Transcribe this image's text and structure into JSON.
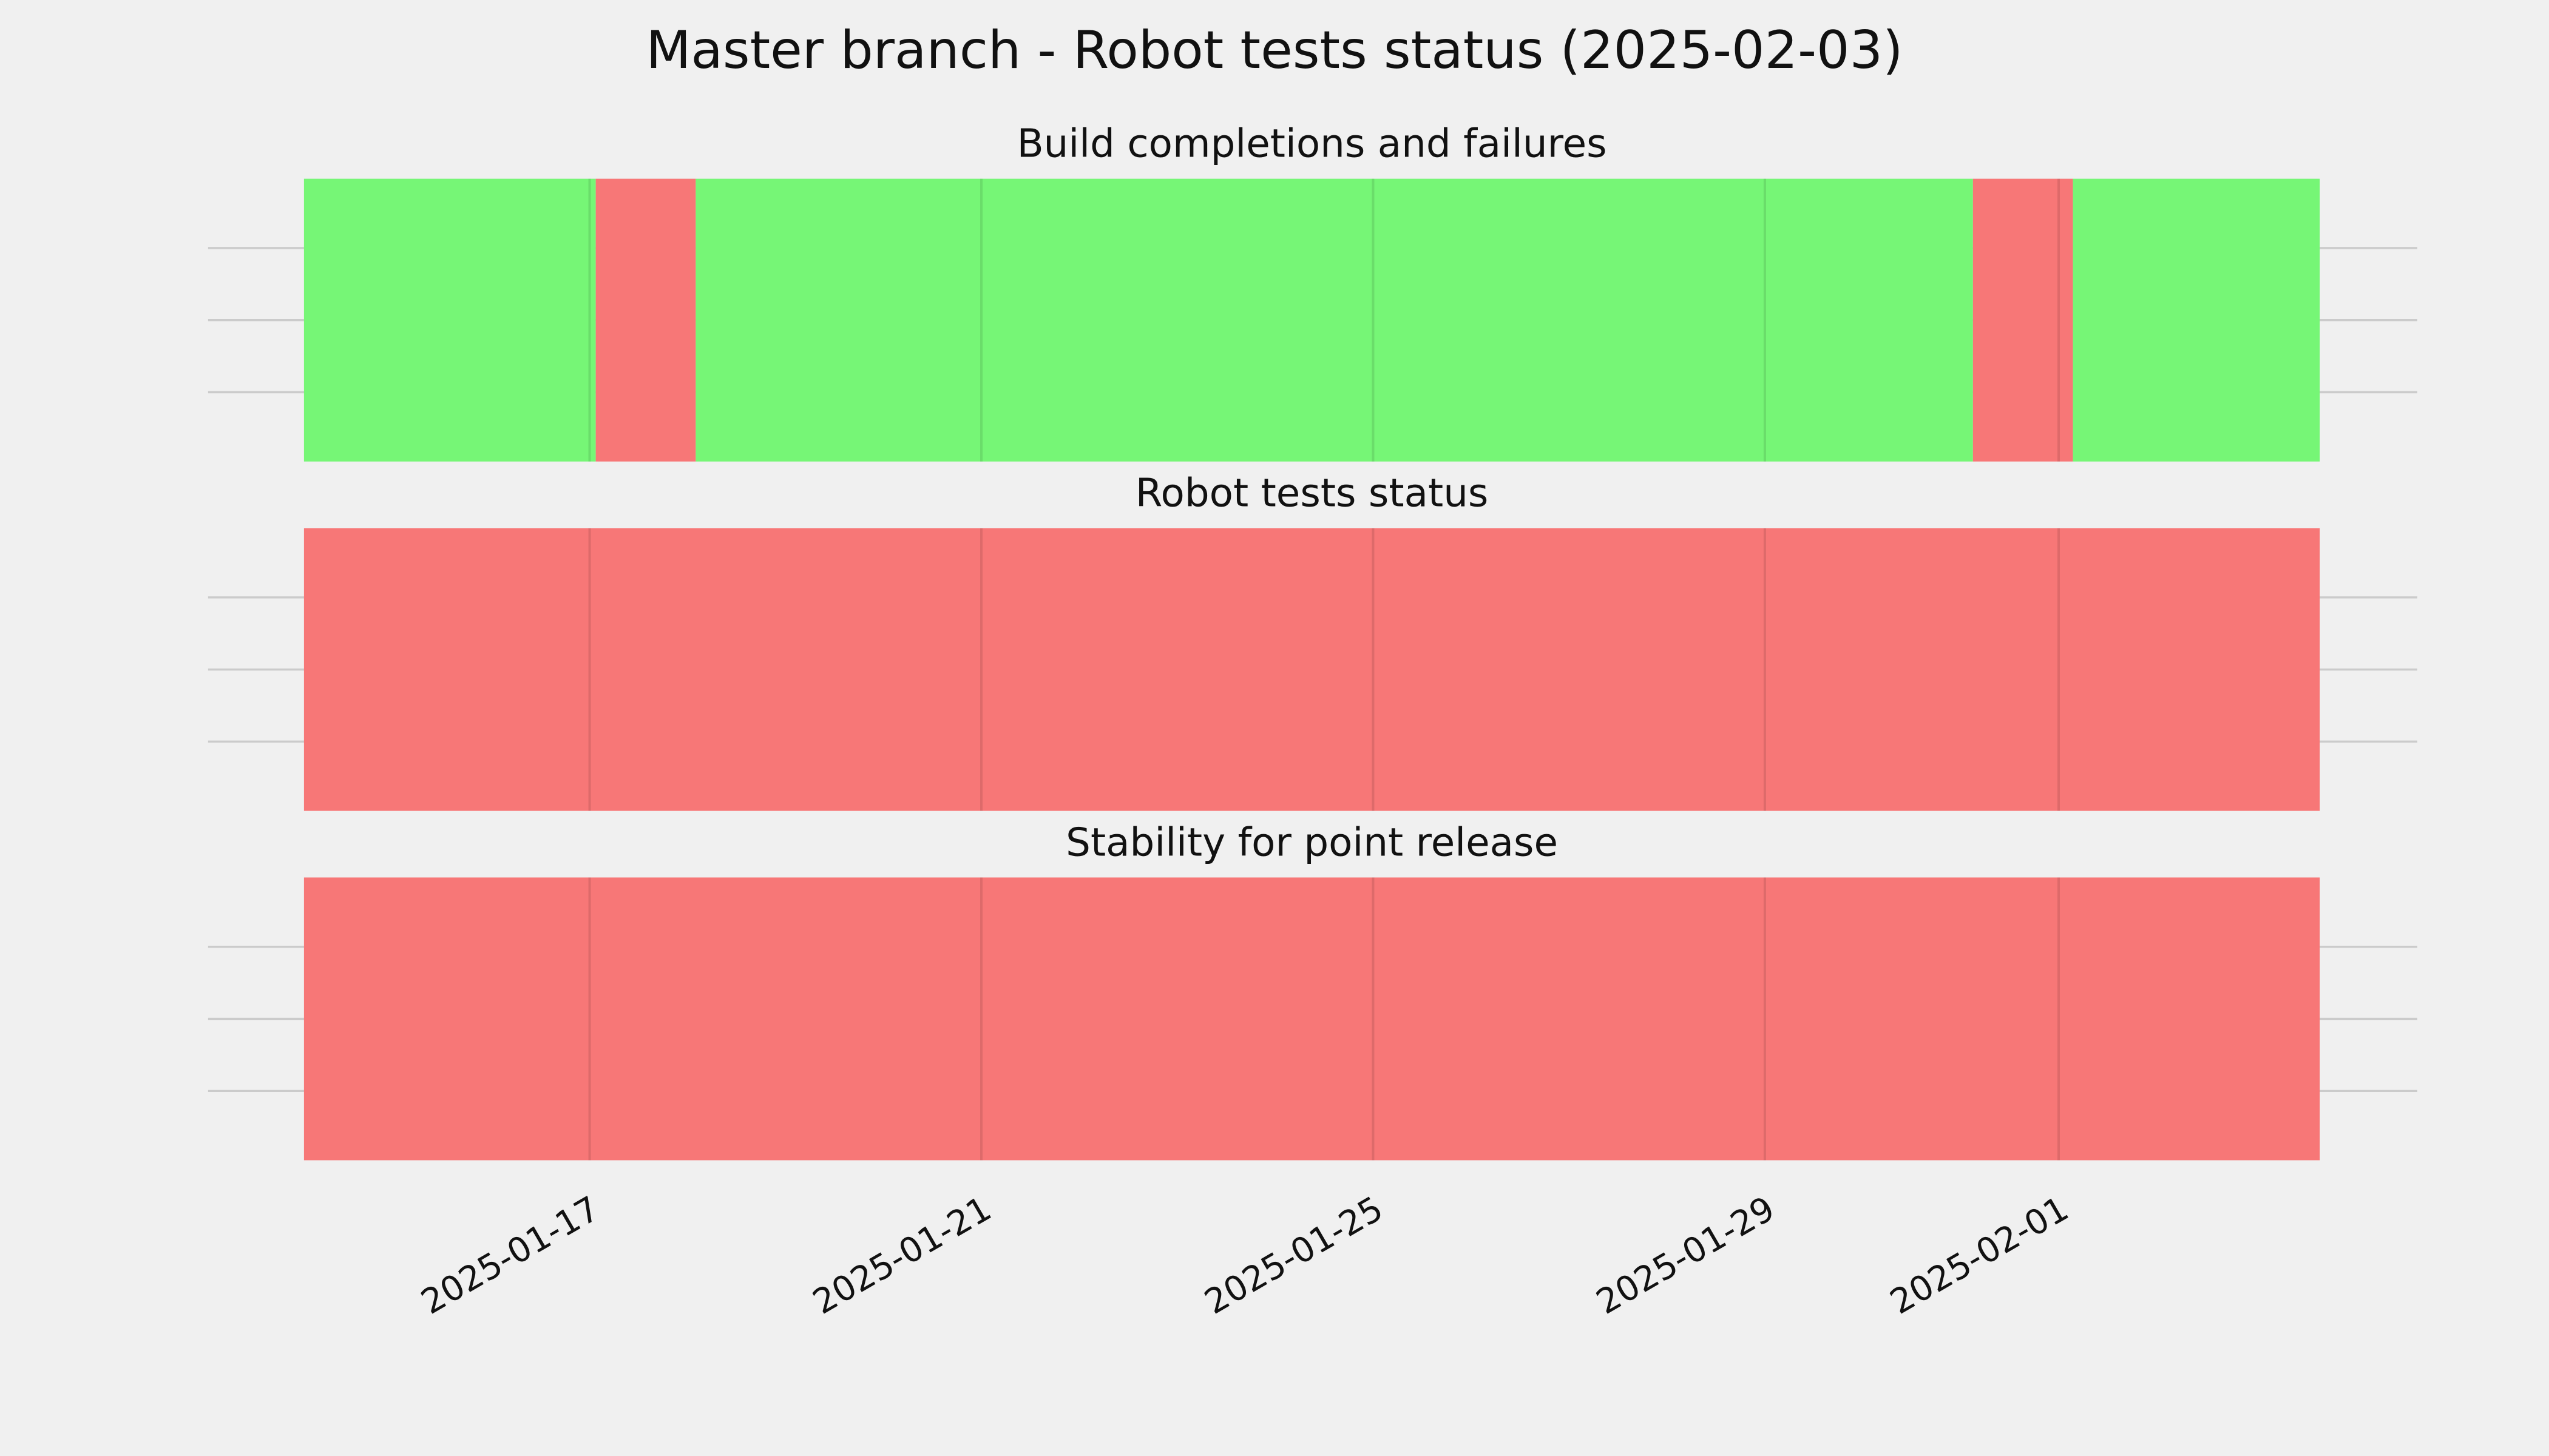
{
  "chart_data": {
    "type": "timeline",
    "title": "Master branch - Robot tests status (2025-02-03)",
    "xlim": [
      "2025-01-14T02:00",
      "2025-02-03T16:00"
    ],
    "xticks": [
      "2025-01-17",
      "2025-01-21",
      "2025-01-25",
      "2025-01-29",
      "2025-02-01"
    ],
    "grid": true,
    "panels": [
      {
        "title": "Build completions and failures",
        "spans": [
          {
            "start": "2025-01-14T02:00",
            "end": "2025-01-17T01:30",
            "color": "#76f676"
          },
          {
            "start": "2025-01-17T01:30",
            "end": "2025-01-18T02:00",
            "color": "#f77777"
          },
          {
            "start": "2025-01-18T02:00",
            "end": "2025-01-31T03:00",
            "color": "#76f676"
          },
          {
            "start": "2025-01-31T03:00",
            "end": "2025-02-01T03:30",
            "color": "#f77777"
          },
          {
            "start": "2025-02-01T03:30",
            "end": "2025-02-03T16:00",
            "color": "#76f676"
          }
        ]
      },
      {
        "title": "Robot tests status",
        "spans": [
          {
            "start": "2025-01-14T02:00",
            "end": "2025-02-03T16:00",
            "color": "#f77777"
          }
        ]
      },
      {
        "title": "Stability for point release",
        "spans": [
          {
            "start": "2025-01-14T02:00",
            "end": "2025-02-03T16:00",
            "color": "#f77777"
          }
        ]
      }
    ]
  }
}
